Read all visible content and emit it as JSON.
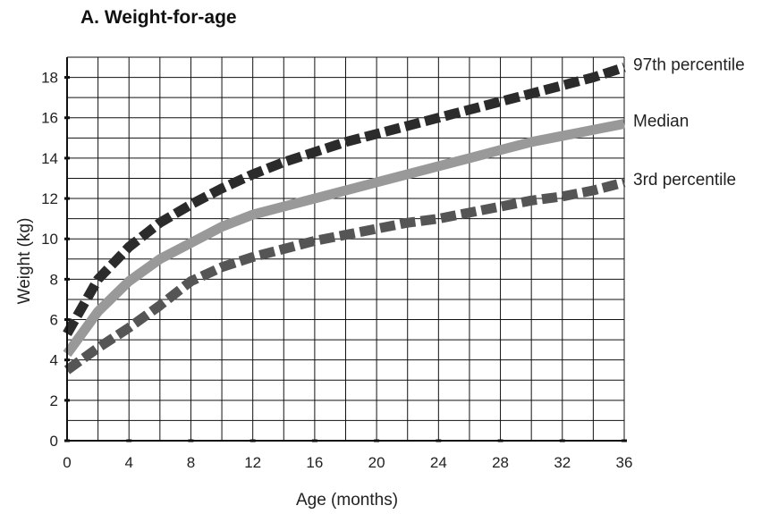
{
  "title": "A. Weight-for-age",
  "chart_data": {
    "type": "line",
    "title": "A. Weight-for-age",
    "xlabel": "Age (months)",
    "ylabel": "Weight (kg)",
    "xlim": [
      0,
      36
    ],
    "ylim": [
      0,
      19
    ],
    "x_ticks": [
      "0",
      "4",
      "8",
      "12",
      "16",
      "20",
      "24",
      "28",
      "32",
      "36"
    ],
    "y_ticks": [
      "0",
      "2",
      "4",
      "6",
      "8",
      "10",
      "12",
      "14",
      "16",
      "18"
    ],
    "grid": true,
    "legend": "labels at right end of lines",
    "x": [
      0,
      2,
      4,
      6,
      8,
      10,
      12,
      14,
      16,
      18,
      20,
      22,
      24,
      26,
      28,
      30,
      32,
      34,
      36
    ],
    "series": [
      {
        "name": "97th percentile",
        "style": "dashed",
        "color": "#2b2b2b",
        "values": [
          5.3,
          8.0,
          9.6,
          10.8,
          11.7,
          12.5,
          13.2,
          13.8,
          14.3,
          14.8,
          15.2,
          15.6,
          16.0,
          16.4,
          16.8,
          17.2,
          17.6,
          18.0,
          18.5
        ]
      },
      {
        "name": "Median",
        "style": "solid",
        "color": "#999999",
        "values": [
          4.3,
          6.4,
          7.9,
          9.0,
          9.8,
          10.6,
          11.2,
          11.6,
          12.0,
          12.4,
          12.8,
          13.2,
          13.6,
          14.0,
          14.4,
          14.8,
          15.1,
          15.4,
          15.7
        ]
      },
      {
        "name": "3rd percentile",
        "style": "dashed",
        "color": "#555555",
        "values": [
          3.5,
          4.6,
          5.6,
          6.7,
          7.9,
          8.6,
          9.1,
          9.5,
          9.9,
          10.2,
          10.5,
          10.8,
          11.0,
          11.3,
          11.6,
          11.9,
          12.1,
          12.4,
          12.8
        ]
      }
    ]
  }
}
